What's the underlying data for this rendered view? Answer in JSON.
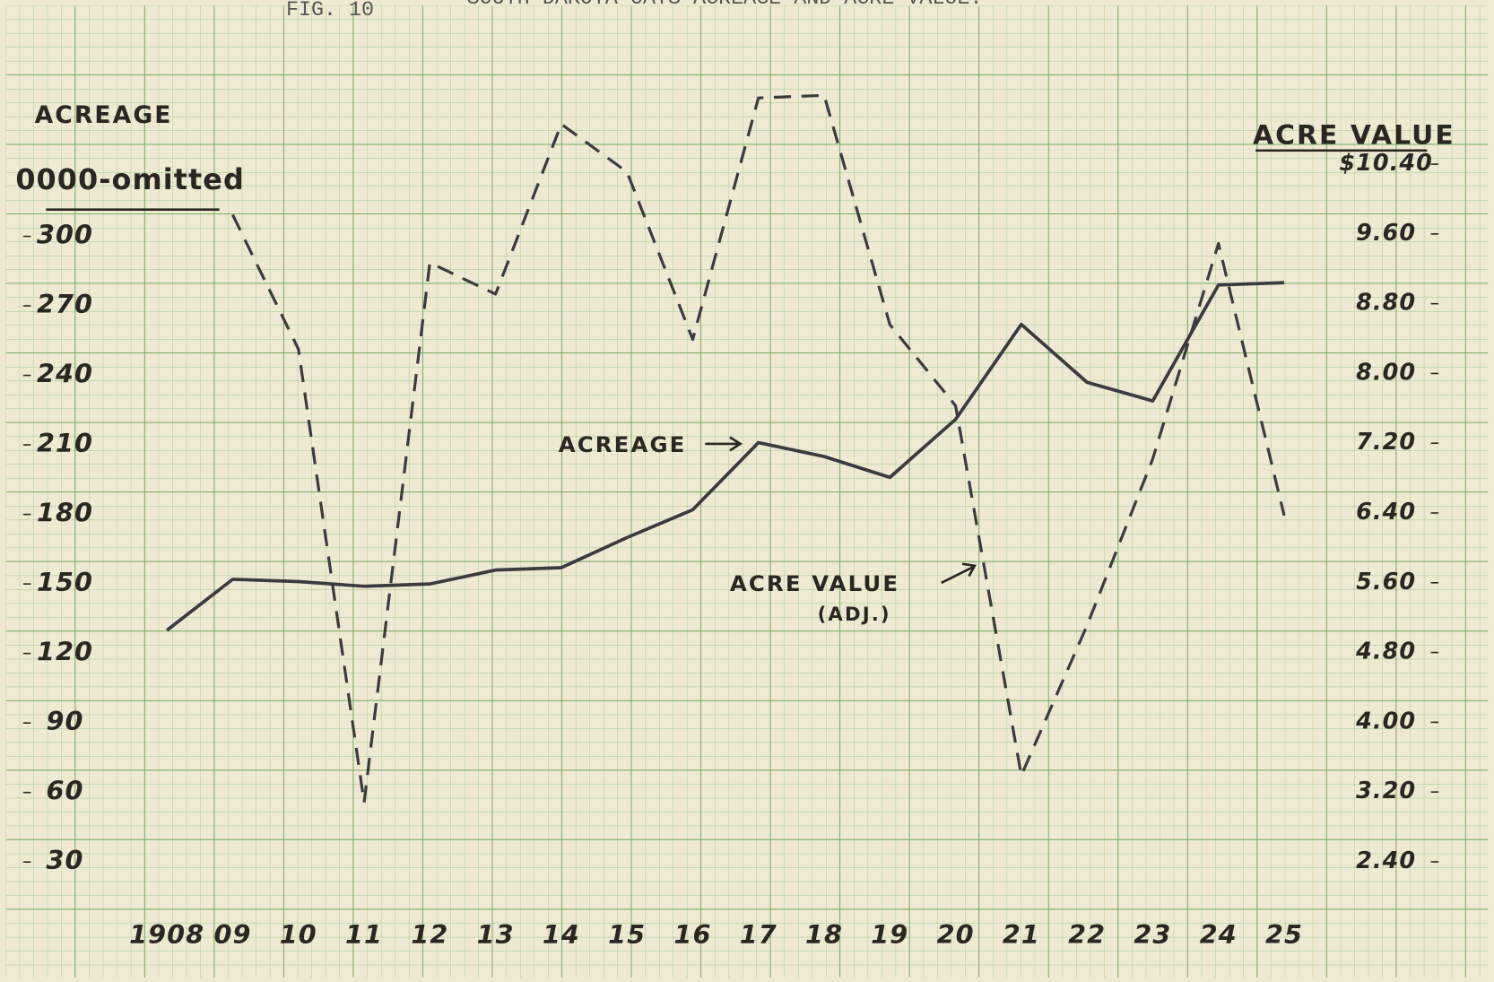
{
  "chart_data": {
    "type": "line",
    "figure": "FIG. 10",
    "title": "SOUTH DAKOTA OATS ACREAGE AND ACRE VALUE.",
    "y_label": "ACREAGE",
    "y_label_note": "0000-omitted",
    "y2_label": "ACRE VALUE",
    "categories": [
      "1908",
      "09",
      "10",
      "11",
      "12",
      "13",
      "14",
      "15",
      "16",
      "17",
      "18",
      "19",
      "20",
      "21",
      "22",
      "23",
      "24",
      "25"
    ],
    "series": [
      {
        "name": "ACREAGE",
        "color": "#3a3a40",
        "style": "solid",
        "values": [
          130,
          152,
          151,
          149,
          150,
          156,
          157,
          170,
          182,
          211,
          205,
          196,
          221,
          262,
          237,
          229,
          279,
          280
        ]
      },
      {
        "name": "ACRE VALUE",
        "note": "(ADJ.)",
        "color": "#3a3a40",
        "style": "dashed",
        "axis": "y2",
        "values": [
          null,
          9.82,
          8.28,
          3.08,
          9.27,
          8.91,
          10.86,
          10.31,
          8.39,
          11.16,
          11.19,
          8.56,
          7.63,
          3.39,
          5.11,
          7.02,
          9.49,
          6.37
        ]
      }
    ],
    "ylim": [
      0,
      365
    ],
    "yticks": [
      30,
      60,
      90,
      120,
      150,
      180,
      210,
      240,
      270,
      300
    ],
    "y2lim": [
      1.6,
      11.3
    ],
    "y2ticks": [
      {
        "value": 2.4,
        "label": "2.40"
      },
      {
        "value": 3.2,
        "label": "3.20"
      },
      {
        "value": 4.0,
        "label": "4.00"
      },
      {
        "value": 4.8,
        "label": "4.80"
      },
      {
        "value": 5.6,
        "label": "5.60"
      },
      {
        "value": 6.4,
        "label": "6.40"
      },
      {
        "value": 7.2,
        "label": "7.20"
      },
      {
        "value": 8.0,
        "label": "8.00"
      },
      {
        "value": 8.8,
        "label": "8.80"
      },
      {
        "value": 9.6,
        "label": "9.60"
      },
      {
        "value": 10.4,
        "label": "$10.40"
      }
    ]
  }
}
